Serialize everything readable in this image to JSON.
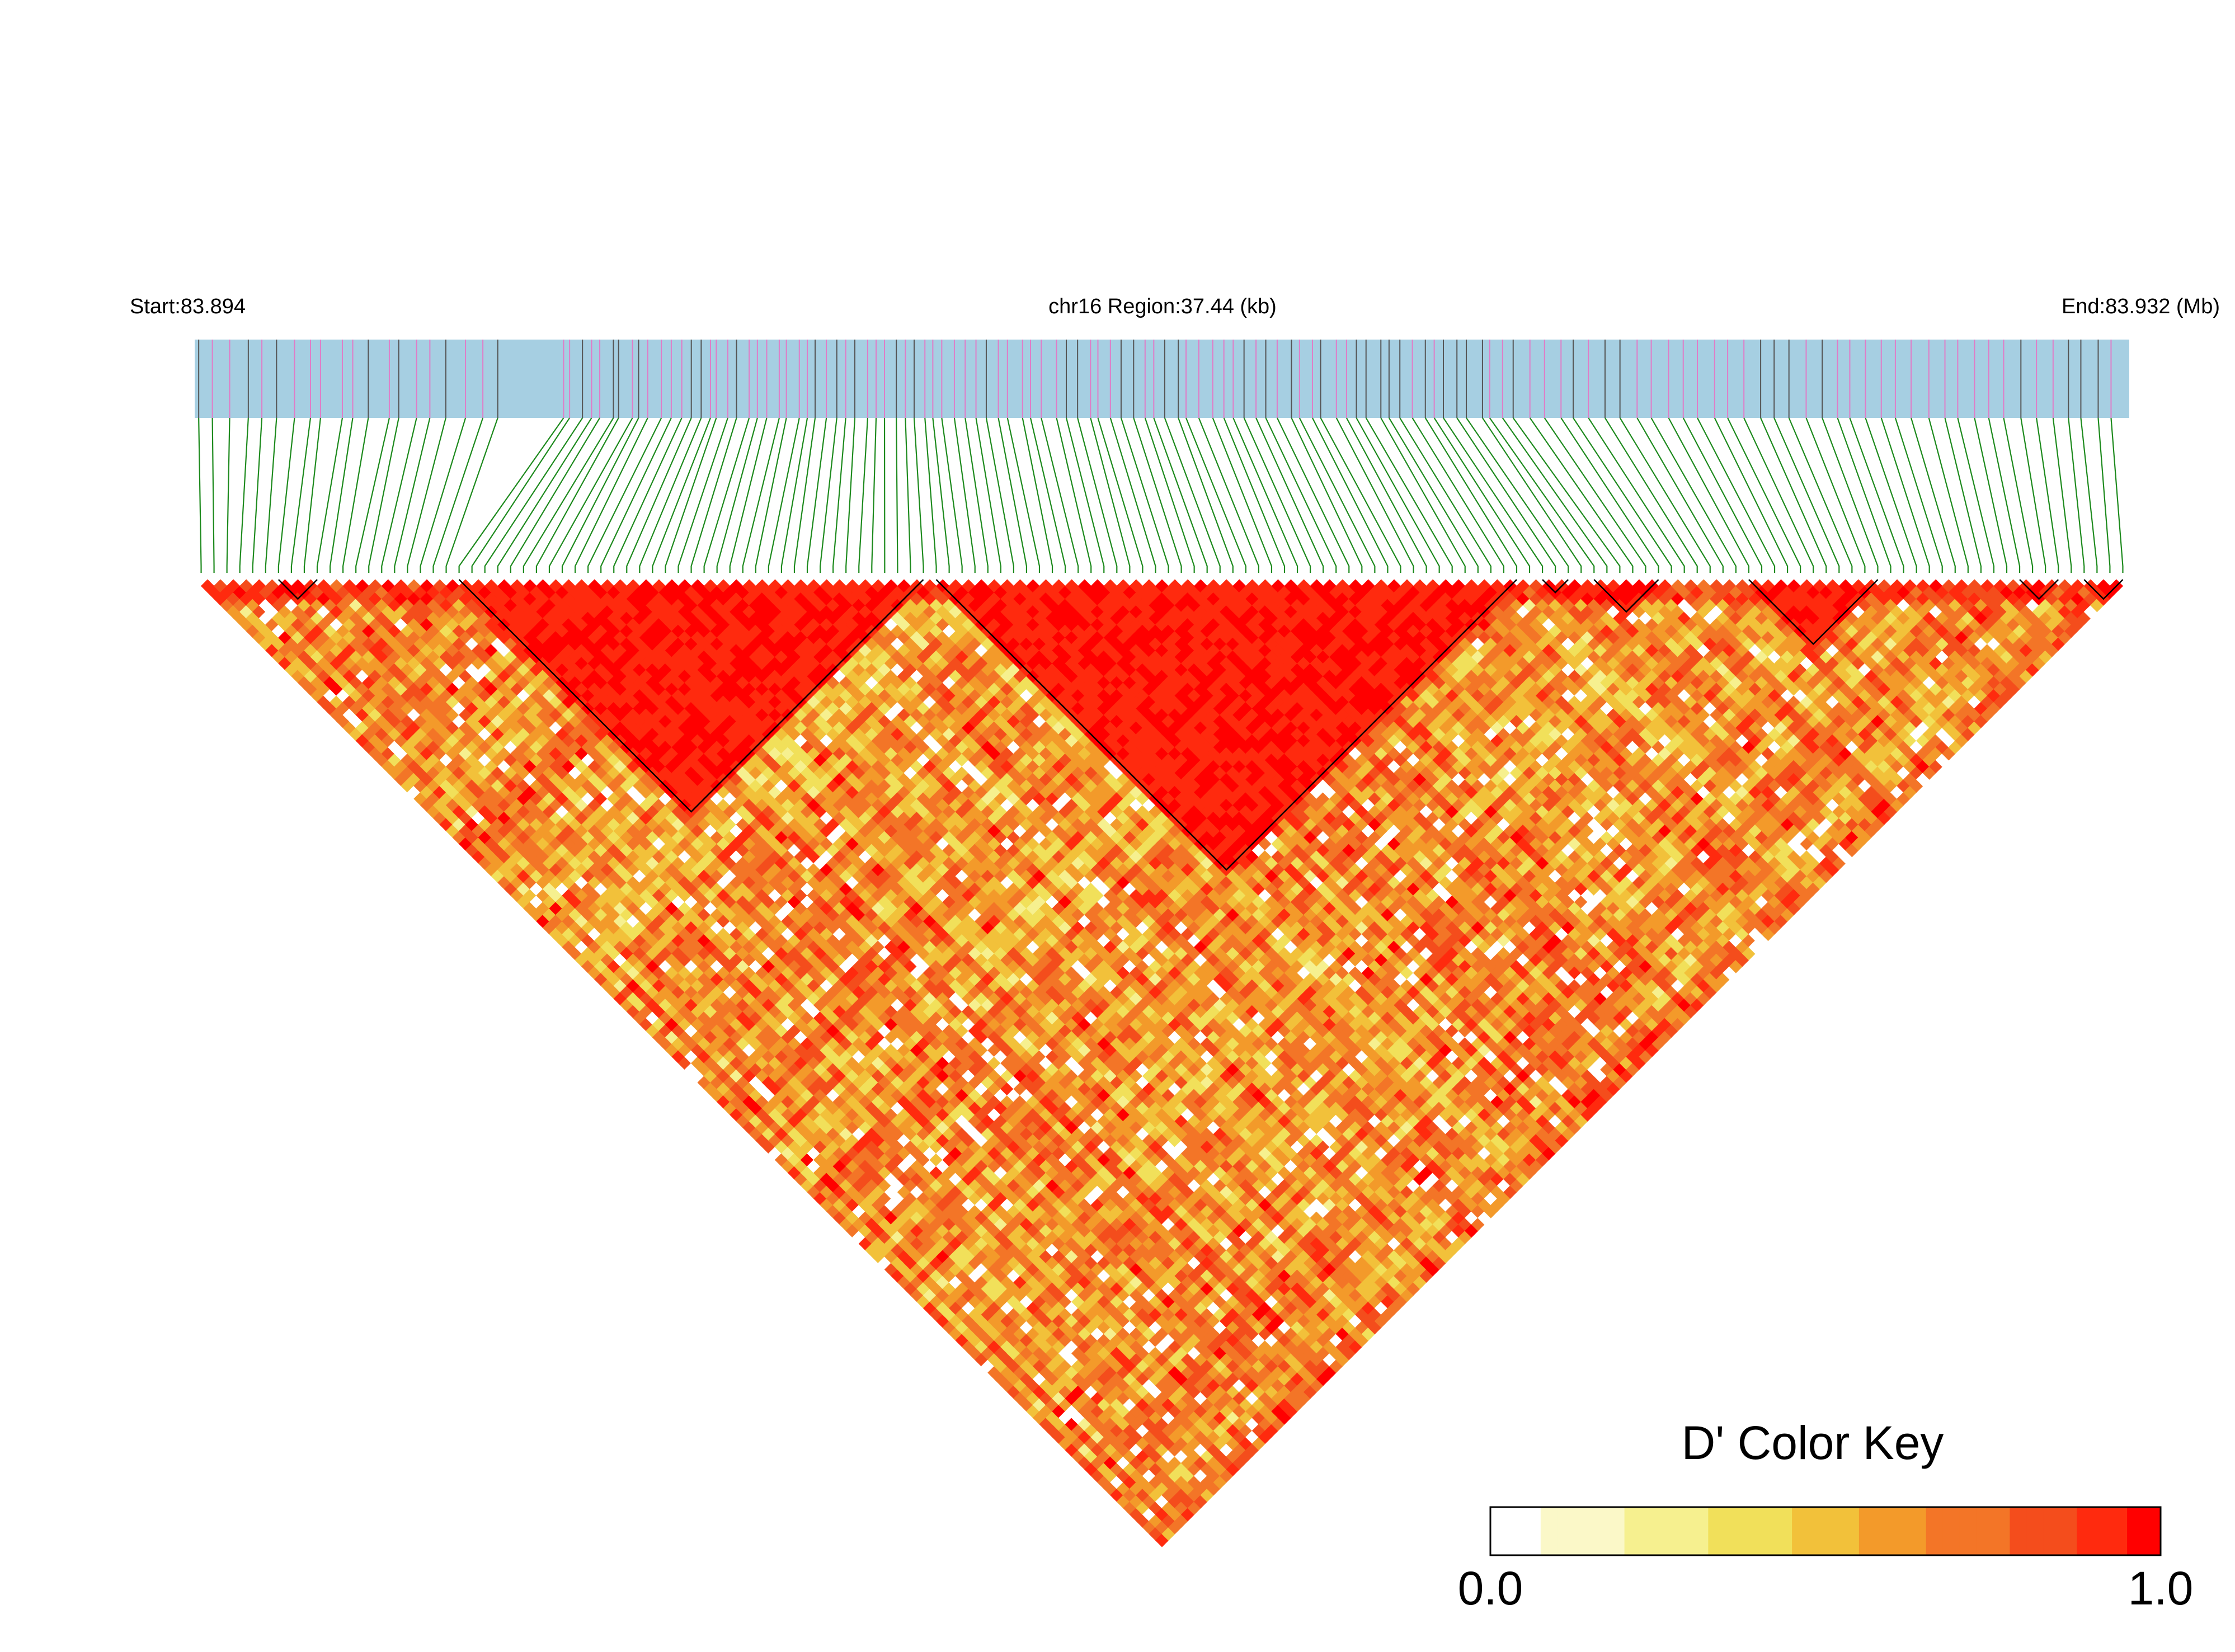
{
  "chart_data": {
    "type": "heatmap",
    "region": {
      "start_label": "Start:83.894",
      "center_label": "chr16 Region:37.44 (kb)",
      "end_label": "End:83.932 (Mb)",
      "chromosome": "chr16",
      "start_mb": 83.894,
      "end_mb": 83.932,
      "length_kb": 37.44
    },
    "snp_count": 150,
    "haplotype_blocks": [
      {
        "from": 6,
        "to": 9
      },
      {
        "from": 20,
        "to": 56
      },
      {
        "from": 57,
        "to": 102
      },
      {
        "from": 104,
        "to": 106
      },
      {
        "from": 108,
        "to": 113
      },
      {
        "from": 120,
        "to": 130
      },
      {
        "from": 141,
        "to": 144
      },
      {
        "from": 146,
        "to": 149
      }
    ],
    "color_key": {
      "title": "D' Color Key",
      "min_label": "0.0",
      "max_label": "1.0",
      "min": 0.0,
      "max": 1.0,
      "stops": [
        "#ffffff",
        "#f1eb4b",
        "#f39a2a",
        "#ff0000"
      ]
    },
    "colors": {
      "snp_track": "#a6cfe2",
      "snp_tick_gray": "#555555",
      "snp_tick_pink": "#e07cc7",
      "connector": "#1d8a1d",
      "block_outline": "#000000"
    },
    "matrix_note": "pairwise D' between SNPs; high (red) LD inside blocks, mixed orange/yellow/white outside"
  }
}
